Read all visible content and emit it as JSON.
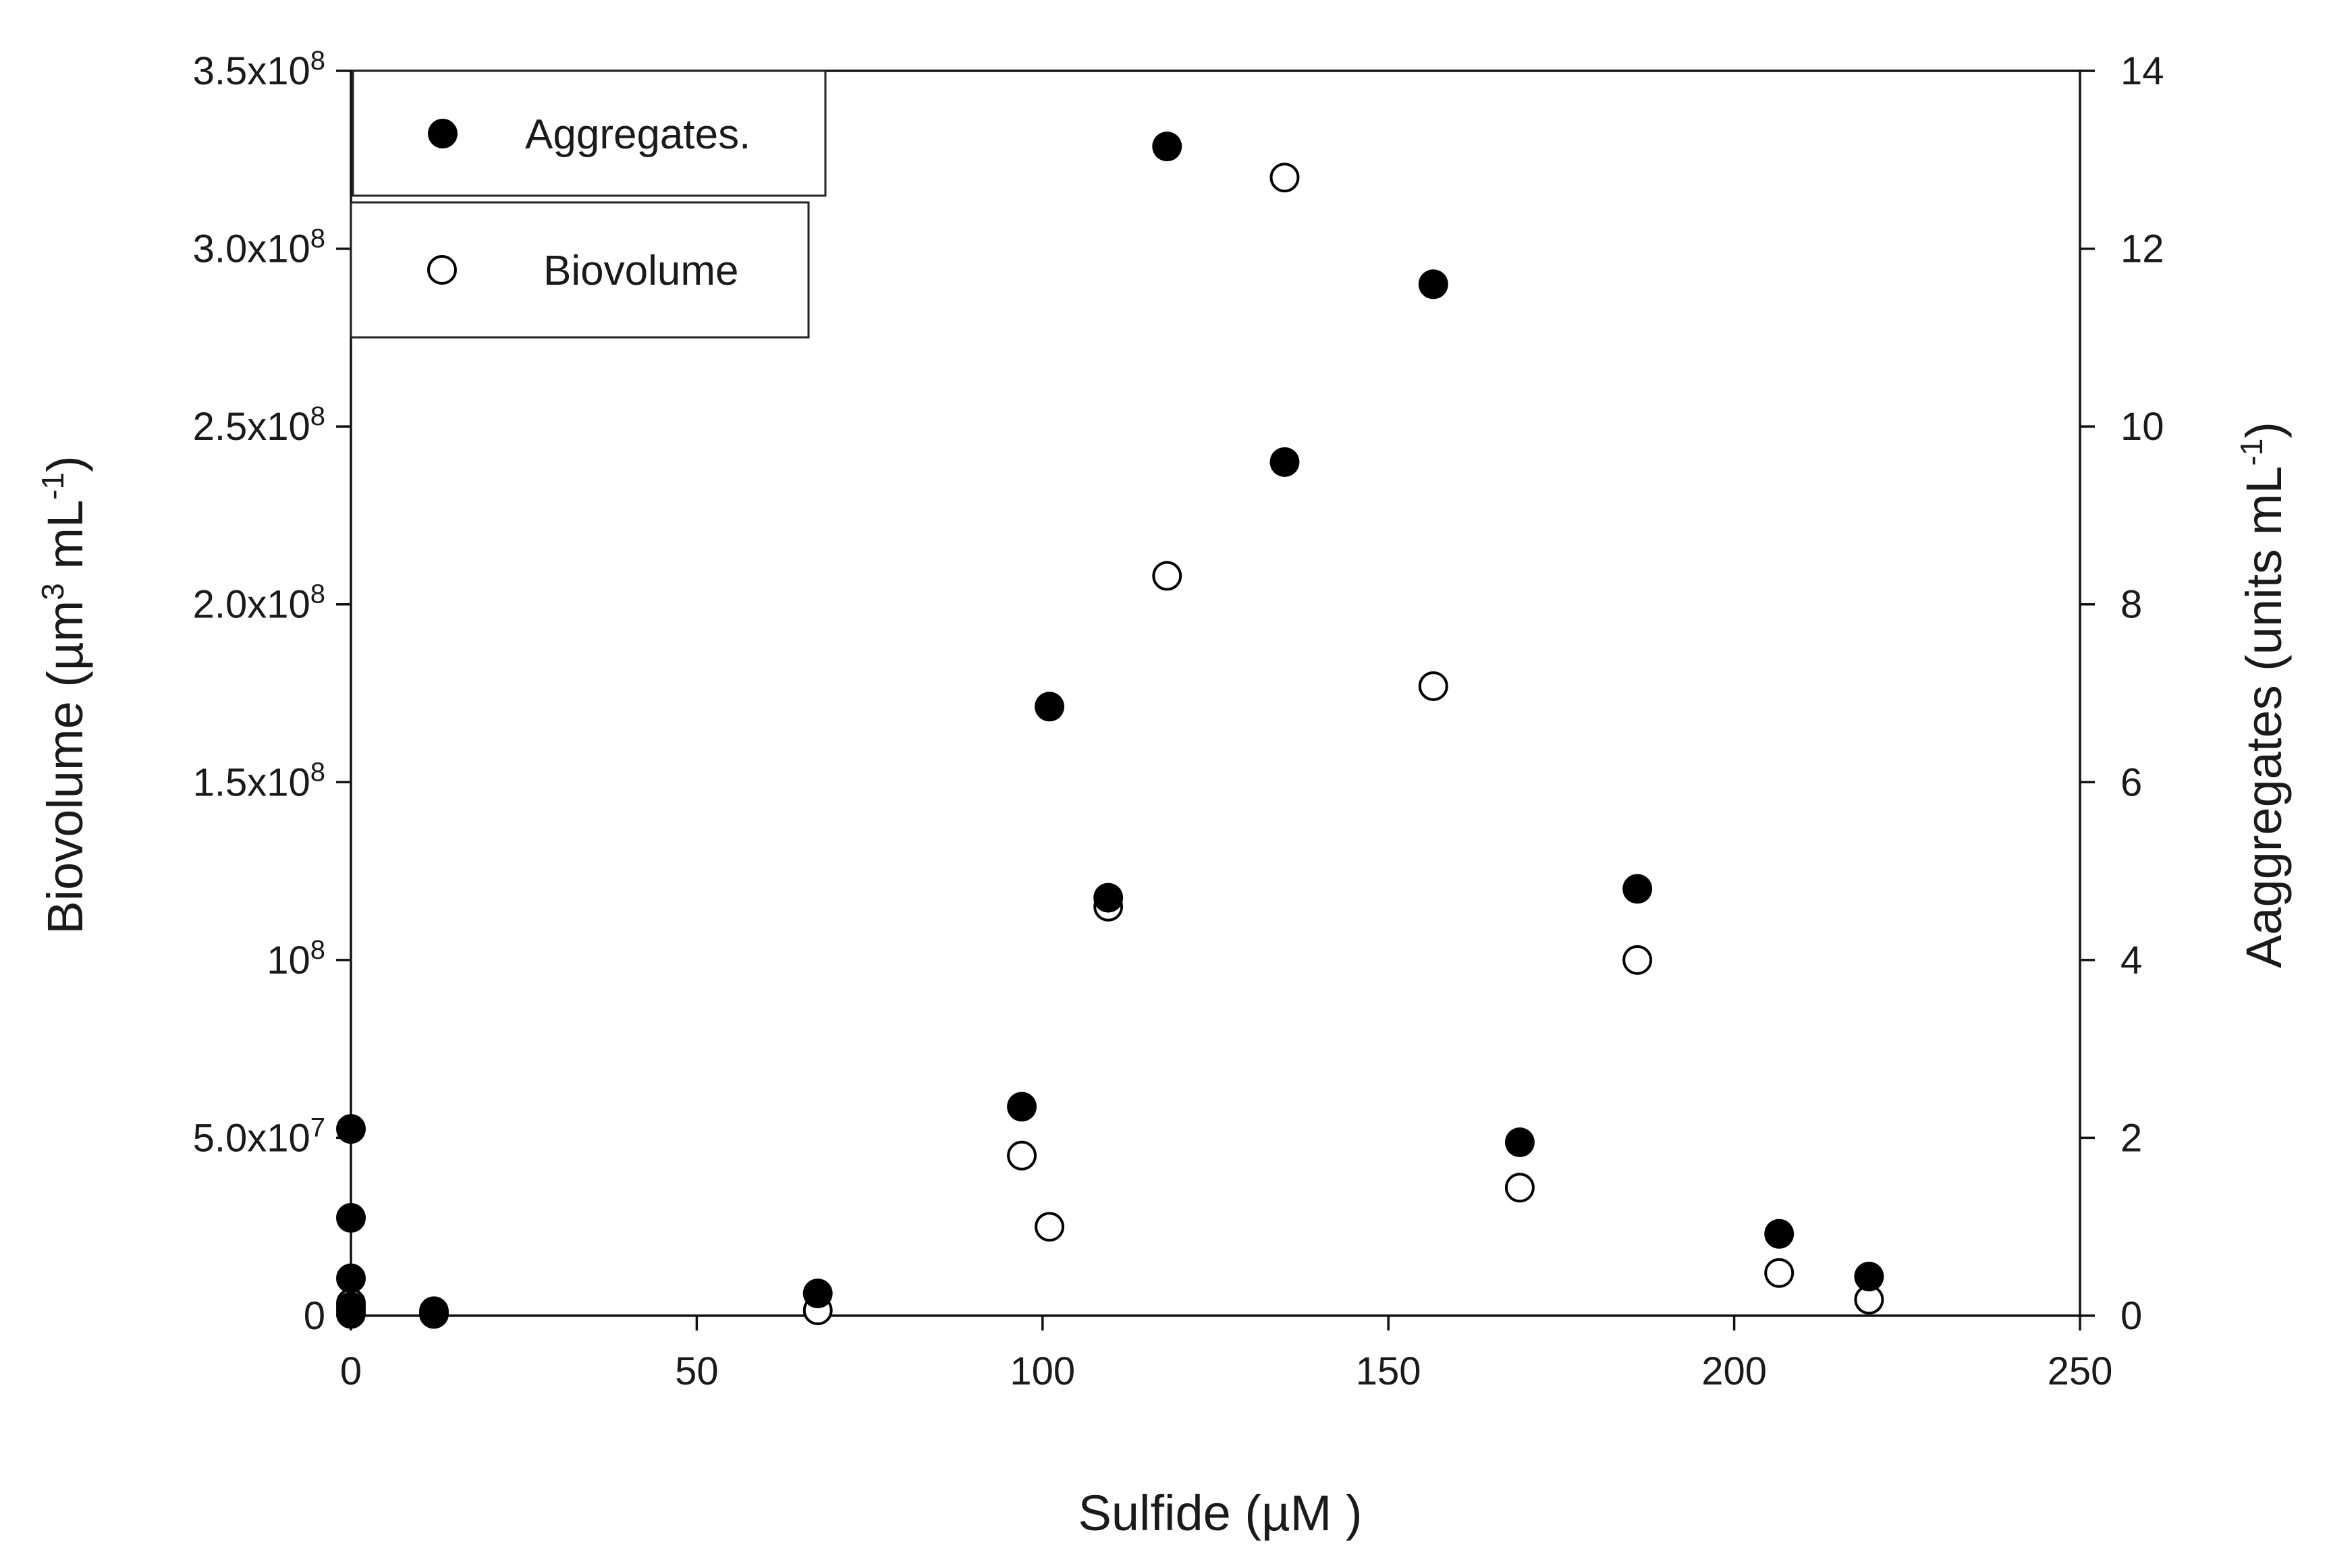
{
  "chart_data": {
    "type": "scatter",
    "xlabel": "Sulfide (µM )",
    "ylabel_left": {
      "main": "Biovolume (µm",
      "sup1": "3",
      "mid": " mL",
      "sup2": "-1",
      "end": ")"
    },
    "ylabel_right": {
      "main": "Aaggregates (units mL",
      "sup": "-1",
      "end": ")"
    },
    "xlim": [
      0,
      250
    ],
    "ylim_left": [
      0,
      350000000
    ],
    "ylim_right": [
      0,
      14
    ],
    "x_ticks": [
      {
        "value": 0,
        "label": "0"
      },
      {
        "value": 50,
        "label": "50"
      },
      {
        "value": 100,
        "label": "100"
      },
      {
        "value": 150,
        "label": "150"
      },
      {
        "value": 200,
        "label": "200"
      },
      {
        "value": 250,
        "label": "250"
      }
    ],
    "y_left_ticks": [
      {
        "value": 0,
        "base": "0",
        "exp": ""
      },
      {
        "value": 50000000,
        "base": "5.0x10",
        "exp": "7"
      },
      {
        "value": 100000000,
        "base": "10",
        "exp": "8"
      },
      {
        "value": 150000000,
        "base": "1.5x10",
        "exp": "8"
      },
      {
        "value": 200000000,
        "base": "2.0x10",
        "exp": "8"
      },
      {
        "value": 250000000,
        "base": "2.5x10",
        "exp": "8"
      },
      {
        "value": 300000000,
        "base": "3.0x10",
        "exp": "8"
      },
      {
        "value": 350000000,
        "base": "3.5x10",
        "exp": "8"
      }
    ],
    "y_right_ticks": [
      {
        "value": 0,
        "label": "0"
      },
      {
        "value": 2,
        "label": "2"
      },
      {
        "value": 4,
        "label": "4"
      },
      {
        "value": 6,
        "label": "6"
      },
      {
        "value": 8,
        "label": "8"
      },
      {
        "value": 10,
        "label": "10"
      },
      {
        "value": 12,
        "label": "12"
      },
      {
        "value": 14,
        "label": "14"
      }
    ],
    "grid": false,
    "legend_position": "top-left",
    "series": [
      {
        "name": "Aggregates.",
        "axis": "right",
        "marker": "filled-circle",
        "color": "#000000",
        "points": [
          {
            "x": 0,
            "y": 2.1
          },
          {
            "x": 0,
            "y": 1.1
          },
          {
            "x": 0,
            "y": 0.42
          },
          {
            "x": 0,
            "y": 0.1
          },
          {
            "x": 0,
            "y": 0.02
          },
          {
            "x": 12,
            "y": 0.05
          },
          {
            "x": 67.5,
            "y": 0.25
          },
          {
            "x": 97,
            "y": 2.35
          },
          {
            "x": 101,
            "y": 6.85
          },
          {
            "x": 109.5,
            "y": 4.7
          },
          {
            "x": 118,
            "y": 13.15
          },
          {
            "x": 135,
            "y": 9.6
          },
          {
            "x": 156.5,
            "y": 11.6
          },
          {
            "x": 169,
            "y": 1.95
          },
          {
            "x": 186,
            "y": 4.8
          },
          {
            "x": 206.5,
            "y": 0.92
          },
          {
            "x": 219.5,
            "y": 0.44
          }
        ]
      },
      {
        "name": "Biovolume",
        "axis": "left",
        "marker": "open-circle",
        "color": "#000000",
        "points": [
          {
            "x": 0,
            "y": 3500000
          },
          {
            "x": 0,
            "y": 1500000
          },
          {
            "x": 12,
            "y": 500000
          },
          {
            "x": 67.5,
            "y": 1500000
          },
          {
            "x": 97,
            "y": 45000000
          },
          {
            "x": 101,
            "y": 25000000
          },
          {
            "x": 109.5,
            "y": 115000000
          },
          {
            "x": 118,
            "y": 208000000
          },
          {
            "x": 135,
            "y": 320000000
          },
          {
            "x": 156.5,
            "y": 177000000
          },
          {
            "x": 169,
            "y": 36000000
          },
          {
            "x": 186,
            "y": 100000000
          },
          {
            "x": 206.5,
            "y": 12000000
          },
          {
            "x": 219.5,
            "y": 4500000
          }
        ]
      }
    ]
  }
}
